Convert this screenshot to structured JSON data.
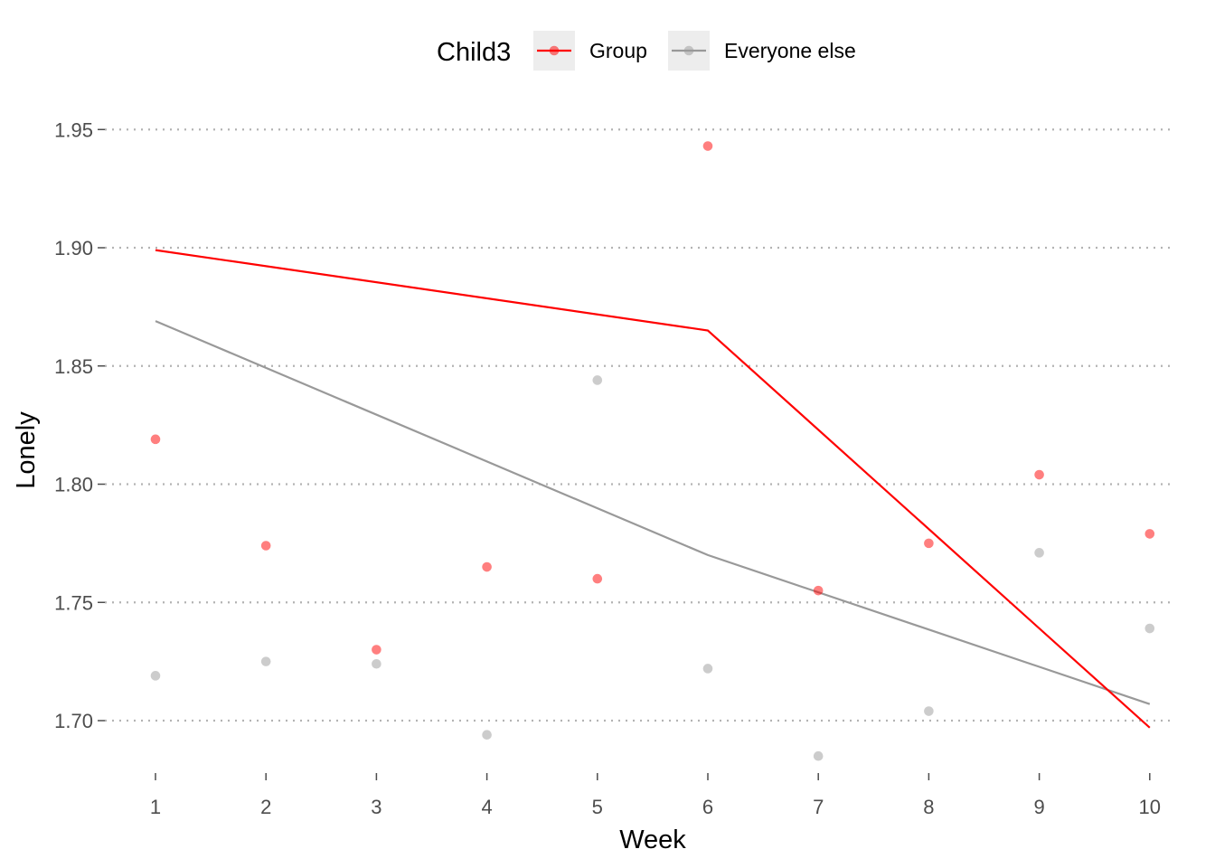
{
  "chart_data": {
    "type": "line",
    "xlabel": "Week",
    "ylabel": "Lonely",
    "x": [
      1,
      2,
      3,
      4,
      5,
      6,
      7,
      8,
      9,
      10
    ],
    "xticks": [
      "1",
      "2",
      "3",
      "4",
      "5",
      "6",
      "7",
      "8",
      "9",
      "10"
    ],
    "yticks": [
      "1.70",
      "1.75",
      "1.80",
      "1.85",
      "1.90",
      "1.95"
    ],
    "ylim": [
      1.68,
      1.955
    ],
    "grid": "horizontal dotted",
    "legend": {
      "title": "Child3",
      "position": "top",
      "entries": [
        "Group",
        "Everyone else"
      ]
    },
    "series": [
      {
        "name": "Group",
        "color": "#ff0000",
        "points": [
          1.819,
          1.774,
          1.73,
          1.765,
          1.76,
          1.943,
          1.755,
          1.775,
          1.804,
          1.779
        ],
        "trend_x": [
          1,
          6,
          10
        ],
        "trend_y": [
          1.899,
          1.865,
          1.697
        ]
      },
      {
        "name": "Everyone else",
        "color": "#999999",
        "points": [
          1.719,
          1.725,
          1.724,
          1.694,
          1.844,
          1.722,
          1.685,
          1.704,
          1.771,
          1.739
        ],
        "trend_x": [
          1,
          6,
          10
        ],
        "trend_y": [
          1.869,
          1.77,
          1.707
        ]
      }
    ]
  }
}
